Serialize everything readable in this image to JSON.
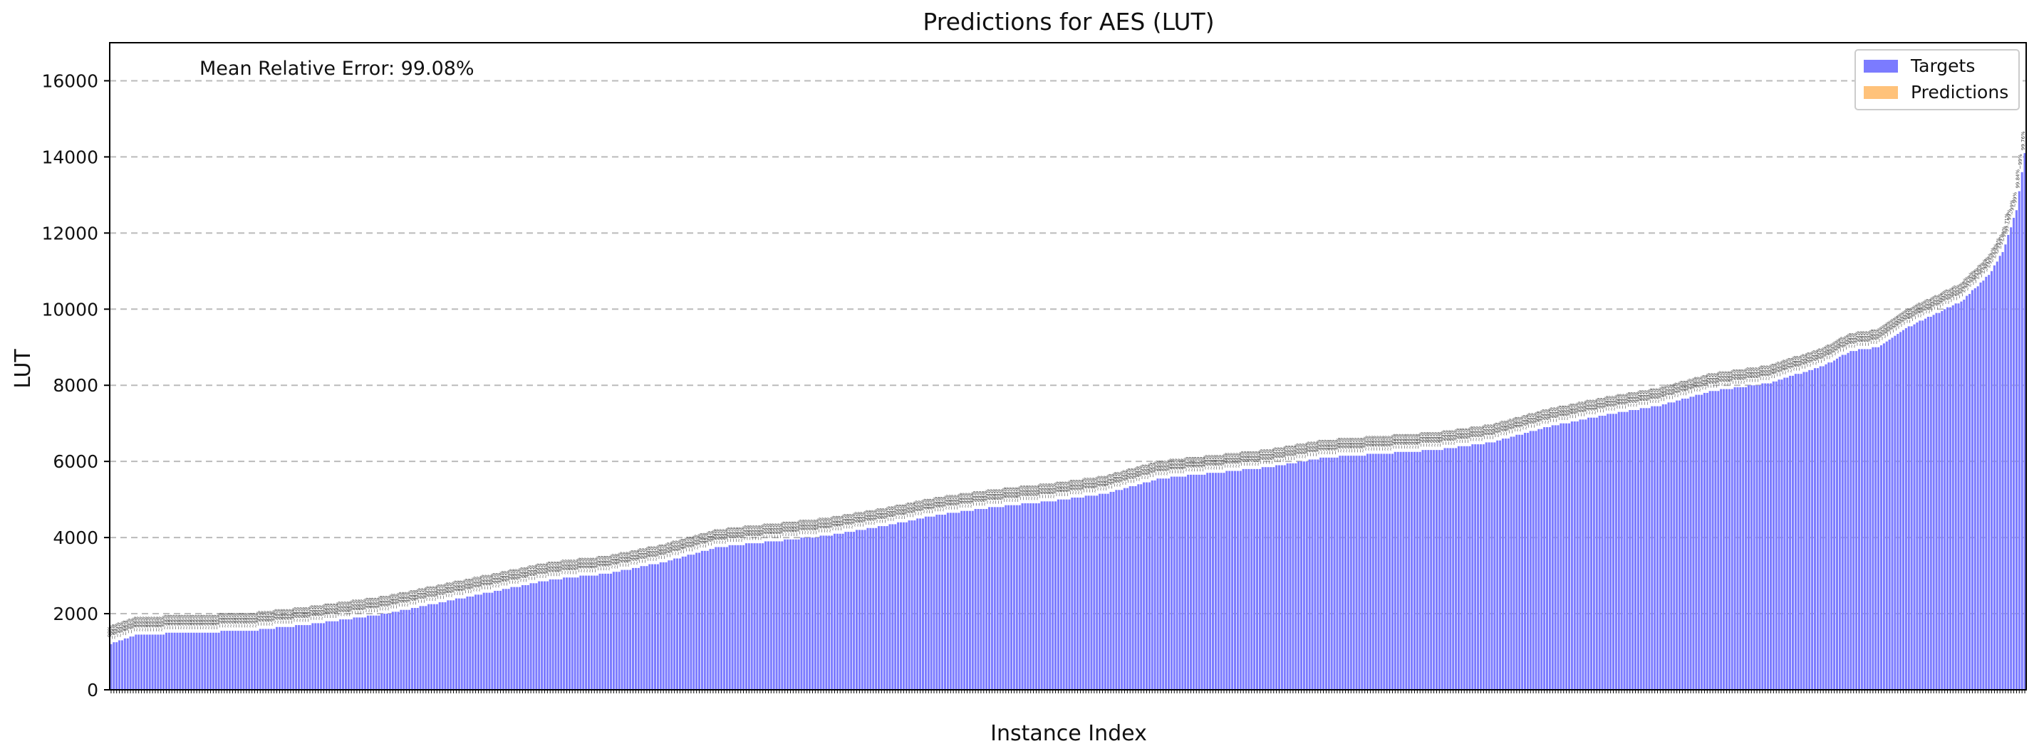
{
  "chart_data": {
    "type": "bar",
    "title": "Predictions for AES (LUT)",
    "xlabel": "Instance Index",
    "ylabel": "LUT",
    "ylim": [
      0,
      17000
    ],
    "yticks": [
      0,
      2000,
      4000,
      6000,
      8000,
      10000,
      12000,
      14000,
      16000
    ],
    "grid": "horizontal dashed",
    "legend_position": "top-right",
    "legend": [
      {
        "label": "Targets",
        "color": "#7b7bff"
      },
      {
        "label": "Predictions",
        "color": "#ffc27a"
      }
    ],
    "annotation": "Mean Relative Error: 99.08%",
    "bar_label_format": "~99%",
    "series": [
      {
        "name": "Targets",
        "color": "#7b7bff",
        "anchors": [
          [
            0,
            1200
          ],
          [
            10,
            1450
          ],
          [
            50,
            1550
          ],
          [
            70,
            1700
          ],
          [
            90,
            1900
          ],
          [
            100,
            2000
          ],
          [
            120,
            2300
          ],
          [
            140,
            2600
          ],
          [
            160,
            2900
          ],
          [
            180,
            3050
          ],
          [
            200,
            3350
          ],
          [
            220,
            3750
          ],
          [
            240,
            3900
          ],
          [
            260,
            4050
          ],
          [
            280,
            4300
          ],
          [
            300,
            4600
          ],
          [
            320,
            4800
          ],
          [
            340,
            4950
          ],
          [
            360,
            5150
          ],
          [
            380,
            5550
          ],
          [
            400,
            5700
          ],
          [
            420,
            5850
          ],
          [
            440,
            6100
          ],
          [
            460,
            6200
          ],
          [
            480,
            6300
          ],
          [
            500,
            6500
          ],
          [
            520,
            6900
          ],
          [
            540,
            7200
          ],
          [
            560,
            7450
          ],
          [
            580,
            7850
          ],
          [
            600,
            8050
          ],
          [
            620,
            8500
          ],
          [
            630,
            8900
          ],
          [
            640,
            9000
          ],
          [
            650,
            9500
          ],
          [
            660,
            9850
          ],
          [
            670,
            10200
          ],
          [
            680,
            10900
          ],
          [
            685,
            11500
          ],
          [
            690,
            12600
          ],
          [
            693,
            14100
          ]
        ],
        "count": 694
      },
      {
        "name": "Predictions",
        "color": "#ffc27a",
        "note": "near zero for all instances"
      }
    ],
    "highlighted_labels": [
      {
        "index": 687,
        "text": "99.71%"
      },
      {
        "index": 691,
        "text": "99.84%"
      },
      {
        "index": 693,
        "text": "99.76%"
      }
    ]
  }
}
